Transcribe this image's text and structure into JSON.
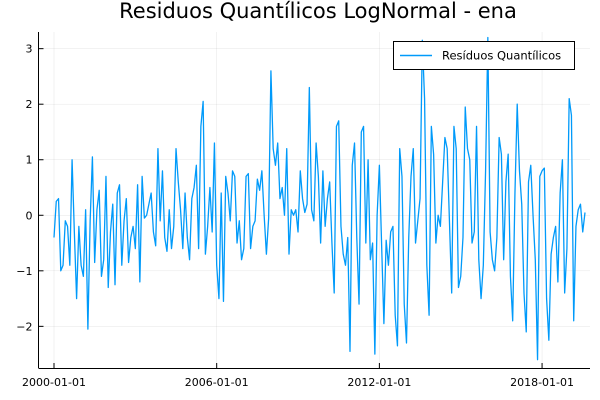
{
  "chart_data": {
    "type": "line",
    "title": "Residuos Quantílicos LogNormal - ena",
    "xlabel": "",
    "ylabel": "",
    "x_start": "2000-01",
    "x_frequency": "monthly",
    "x_ticks": [
      "2000-01-01",
      "2006-01-01",
      "2012-01-01",
      "2018-01-01"
    ],
    "y_ticks": [
      -2,
      -1,
      0,
      1,
      2,
      3
    ],
    "ylim": [
      -2.75,
      3.3
    ],
    "grid": true,
    "legend_position": "top-right",
    "colors": {
      "series": "#009AFA"
    },
    "series": [
      {
        "name": "Resíduos Quantílicos",
        "values": [
          -0.4,
          0.25,
          0.3,
          -1.0,
          -0.9,
          -0.1,
          -0.2,
          -0.9,
          1.0,
          -0.3,
          -1.5,
          -0.2,
          -0.9,
          -1.1,
          0.1,
          -2.05,
          -0.1,
          1.05,
          -0.85,
          0.1,
          0.45,
          -1.1,
          -0.8,
          0.7,
          -1.3,
          -0.3,
          0.2,
          -1.25,
          0.4,
          0.55,
          -0.9,
          -0.1,
          0.3,
          -0.85,
          -0.4,
          -0.2,
          -0.6,
          0.55,
          -1.2,
          0.7,
          -0.05,
          0.0,
          0.2,
          0.4,
          -0.3,
          -0.55,
          1.2,
          -0.1,
          0.8,
          -0.4,
          -0.65,
          0.1,
          -0.6,
          -0.2,
          1.2,
          0.6,
          0.1,
          -0.6,
          0.4,
          -0.4,
          -0.8,
          0.3,
          0.5,
          0.9,
          -0.6,
          1.6,
          2.05,
          -0.7,
          -0.2,
          0.5,
          -0.3,
          1.3,
          -0.9,
          -1.5,
          0.4,
          -1.55,
          0.7,
          0.4,
          -0.1,
          0.8,
          0.7,
          -0.5,
          -0.1,
          -0.8,
          -0.6,
          0.7,
          0.75,
          -0.6,
          -0.2,
          -0.1,
          0.65,
          0.45,
          0.8,
          0.0,
          -0.7,
          -0.05,
          2.6,
          1.2,
          0.9,
          1.3,
          0.3,
          0.5,
          0.0,
          1.2,
          -0.7,
          0.1,
          0.0,
          0.1,
          -0.3,
          0.8,
          0.3,
          0.05,
          0.2,
          2.3,
          0.1,
          -0.1,
          1.3,
          0.7,
          -0.5,
          0.8,
          -0.2,
          0.3,
          0.6,
          -0.5,
          -1.4,
          1.6,
          1.7,
          -0.2,
          -0.7,
          -0.9,
          -0.4,
          -2.45,
          0.9,
          1.3,
          -0.4,
          -1.6,
          1.5,
          1.6,
          -0.5,
          1.0,
          -0.8,
          -0.5,
          -2.5,
          0.0,
          0.9,
          -0.55,
          -1.95,
          -0.45,
          -0.9,
          -0.3,
          -0.2,
          -1.8,
          -2.35,
          1.2,
          0.7,
          -1.6,
          -2.3,
          -0.4,
          0.7,
          1.2,
          -0.5,
          -0.1,
          0.3,
          3.15,
          2.1,
          -0.9,
          -1.8,
          1.6,
          1.1,
          -0.5,
          0.0,
          -0.2,
          0.6,
          1.4,
          1.2,
          -0.1,
          -1.4,
          1.6,
          1.2,
          -1.3,
          -1.1,
          -0.4,
          1.95,
          1.2,
          1.0,
          -0.5,
          -0.3,
          1.6,
          -0.8,
          -1.5,
          -0.9,
          0.8,
          3.2,
          -0.3,
          -0.8,
          -1.0,
          -0.4,
          1.4,
          1.1,
          -0.8,
          0.6,
          1.1,
          -1.1,
          -1.9,
          0.4,
          2.0,
          0.8,
          0.2,
          -1.4,
          -2.1,
          0.6,
          0.9,
          0.0,
          -0.8,
          -2.6,
          0.7,
          0.8,
          0.85,
          -1.5,
          -2.25,
          -0.7,
          -0.4,
          -0.2,
          -1.2,
          0.4,
          1.0,
          -1.4,
          -0.6,
          2.1,
          1.8,
          -1.9,
          -0.2,
          0.1,
          0.2,
          -0.3,
          0.05
        ]
      }
    ]
  }
}
